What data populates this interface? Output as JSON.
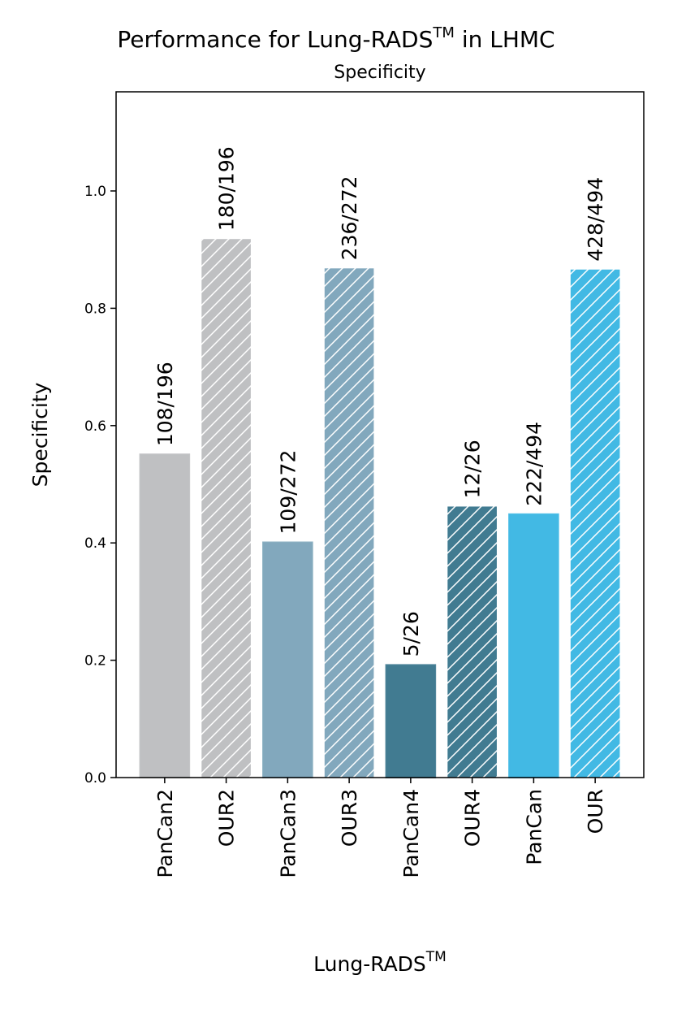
{
  "chart_data": {
    "type": "bar",
    "title": [
      "Performance for Lung-RADS",
      "TM",
      " in LHMC"
    ],
    "subtitle": "Specificity",
    "y_label": "Specificity",
    "x_label": [
      "Lung-RADS",
      "TM"
    ],
    "categories": [
      "PanCan2",
      "OUR2",
      "PanCan3",
      "OUR3",
      "PanCan4",
      "OUR4",
      "PanCan",
      "OUR"
    ],
    "values": [
      0.551,
      0.918,
      0.401,
      0.868,
      0.192,
      0.462,
      0.449,
      0.866
    ],
    "value_labels": [
      "108/196",
      "180/196",
      "109/272",
      "236/272",
      "5/26",
      "12/26",
      "222/494",
      "428/494"
    ],
    "colors": [
      "#bfc0c2",
      "#bfc0c2",
      "#82a8bd",
      "#82a8bd",
      "#417b91",
      "#417b91",
      "#42b9e4",
      "#42b9e4"
    ],
    "hatched": [
      false,
      true,
      false,
      true,
      false,
      true,
      false,
      true
    ],
    "ylim": [
      0,
      1.169
    ],
    "yticks": [
      {
        "value": 0,
        "label": "0.0"
      },
      {
        "value": 0.2,
        "label": "0.2"
      },
      {
        "value": 0.4,
        "label": "0.4"
      },
      {
        "value": 0.6,
        "label": "0.6"
      },
      {
        "value": 0.8,
        "label": "0.8"
      },
      {
        "value": 1,
        "label": "1.0"
      }
    ]
  }
}
